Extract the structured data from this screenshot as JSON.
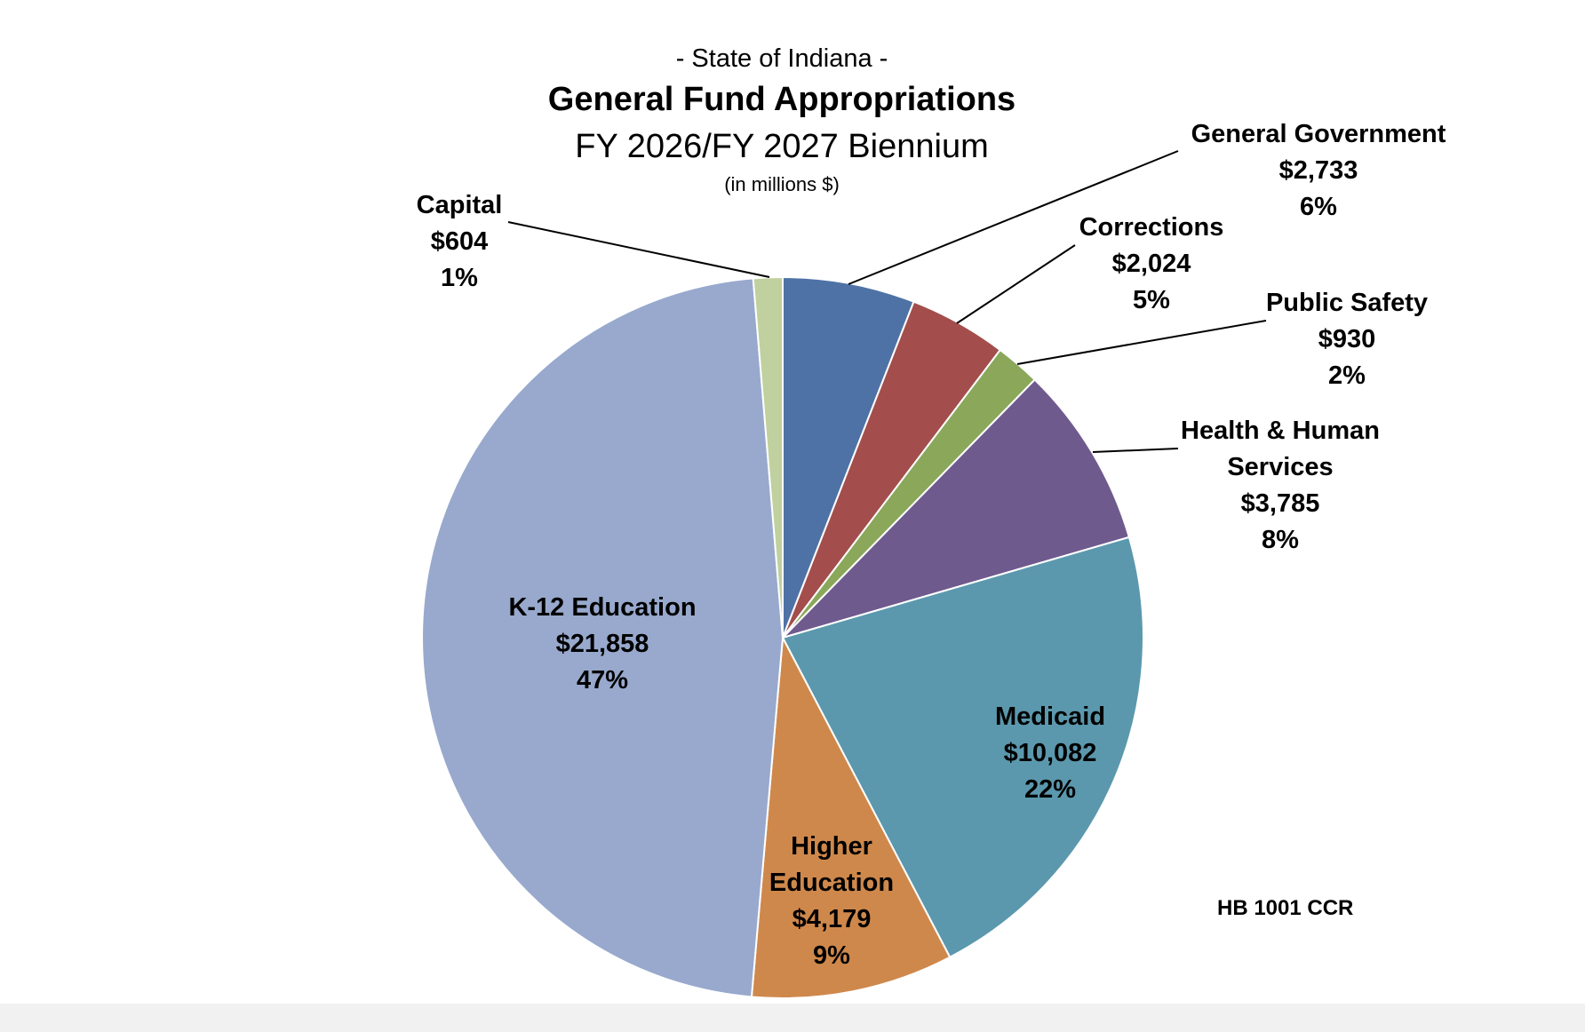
{
  "chart_data": {
    "type": "pie",
    "supertitle": "- State of Indiana -",
    "title": "General Fund Appropriations",
    "subtitle": "FY 2026/FY 2027 Biennium",
    "units": "(in millions $)",
    "start_angle_deg": 0,
    "direction": "clockwise",
    "slices": [
      {
        "name": "General Government",
        "label_lines": [
          "General Government"
        ],
        "value": 2733,
        "value_label": "$2,733",
        "percent_label": "6%",
        "color": "#4f72a6"
      },
      {
        "name": "Corrections",
        "label_lines": [
          "Corrections"
        ],
        "value": 2024,
        "value_label": "$2,024",
        "percent_label": "5%",
        "color": "#a34e4c"
      },
      {
        "name": "Public Safety",
        "label_lines": [
          "Public Safety"
        ],
        "value": 930,
        "value_label": "$930",
        "percent_label": "2%",
        "color": "#8aa75a"
      },
      {
        "name": "Health & Human Services",
        "label_lines": [
          "Health & Human",
          "Services"
        ],
        "value": 3785,
        "value_label": "$3,785",
        "percent_label": "8%",
        "color": "#6f5a8e"
      },
      {
        "name": "Medicaid",
        "label_lines": [
          "Medicaid"
        ],
        "value": 10082,
        "value_label": "$10,082",
        "percent_label": "22%",
        "color": "#5b98ad"
      },
      {
        "name": "Higher Education",
        "label_lines": [
          "Higher",
          "Education"
        ],
        "value": 4179,
        "value_label": "$4,179",
        "percent_label": "9%",
        "color": "#cf884b"
      },
      {
        "name": "K-12 Education",
        "label_lines": [
          "K-12 Education"
        ],
        "value": 21858,
        "value_label": "$21,858",
        "percent_label": "47%",
        "color": "#98a9cd"
      },
      {
        "name": "Capital",
        "label_lines": [
          "Capital"
        ],
        "value": 604,
        "value_label": "$604",
        "percent_label": "1%",
        "color": "#c0d09e"
      }
    ],
    "annotation": "HB 1001 CCR"
  }
}
